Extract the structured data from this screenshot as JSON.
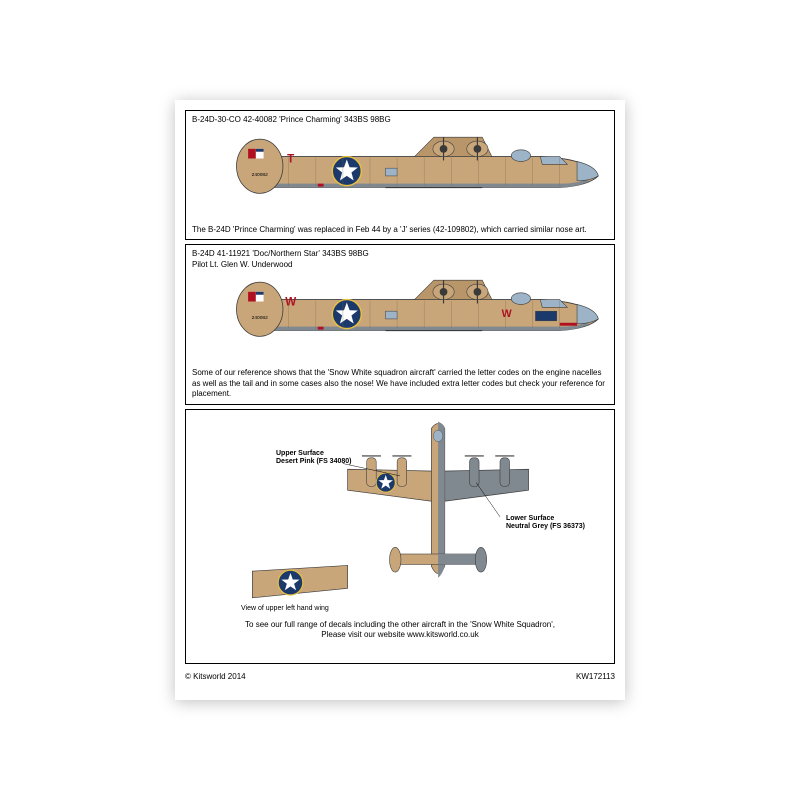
{
  "colors": {
    "desert_pink": "#c8a67a",
    "desert_pink_shade": "#b8966a",
    "neutral_grey": "#808890",
    "roundel_blue": "#1b3a6b",
    "roundel_white": "#ffffff",
    "flag_red": "#b01020",
    "flag_blue": "#1b3a6b",
    "outline": "#3a3a3a",
    "panel_line": "#7a6548",
    "red_letter": "#b01020",
    "black": "#000000",
    "canopy": "#9db4c8"
  },
  "aircraft1": {
    "title": "B-24D-30-CO 42-40082 'Prince Charming' 343BS 98BG",
    "tail_letter": "T",
    "note": "The B-24D 'Prince Charming' was replaced in Feb 44 by a 'J' series (42-109802), which carried similar nose art."
  },
  "aircraft2": {
    "title": "B-24D 41-11921 'Doc/Northern Star' 343BS 98BG",
    "subtitle": "Pilot Lt. Glen W. Underwood",
    "tail_letter": "W",
    "nacelle_letter": "W",
    "note": "Some of our reference shows that the 'Snow White squadron aircraft' carried the letter codes on the engine nacelles as well as the tail and in some cases also the nose! We have included extra letter codes but check your reference for placement."
  },
  "topview": {
    "upper_label": "Upper Surface\nDesert Pink (FS 34080)",
    "lower_label": "Lower Surface\nNeutral Grey (FS 36373)",
    "wing_label": "View of upper left hand wing"
  },
  "footer": {
    "line1": "To see our full range of decals including the other aircraft in the 'Snow White Squadron',",
    "line2": "Please visit our website www.kitsworld.co.uk"
  },
  "copyright": "© Kitsworld 2014",
  "sheet_code": "KW172113"
}
